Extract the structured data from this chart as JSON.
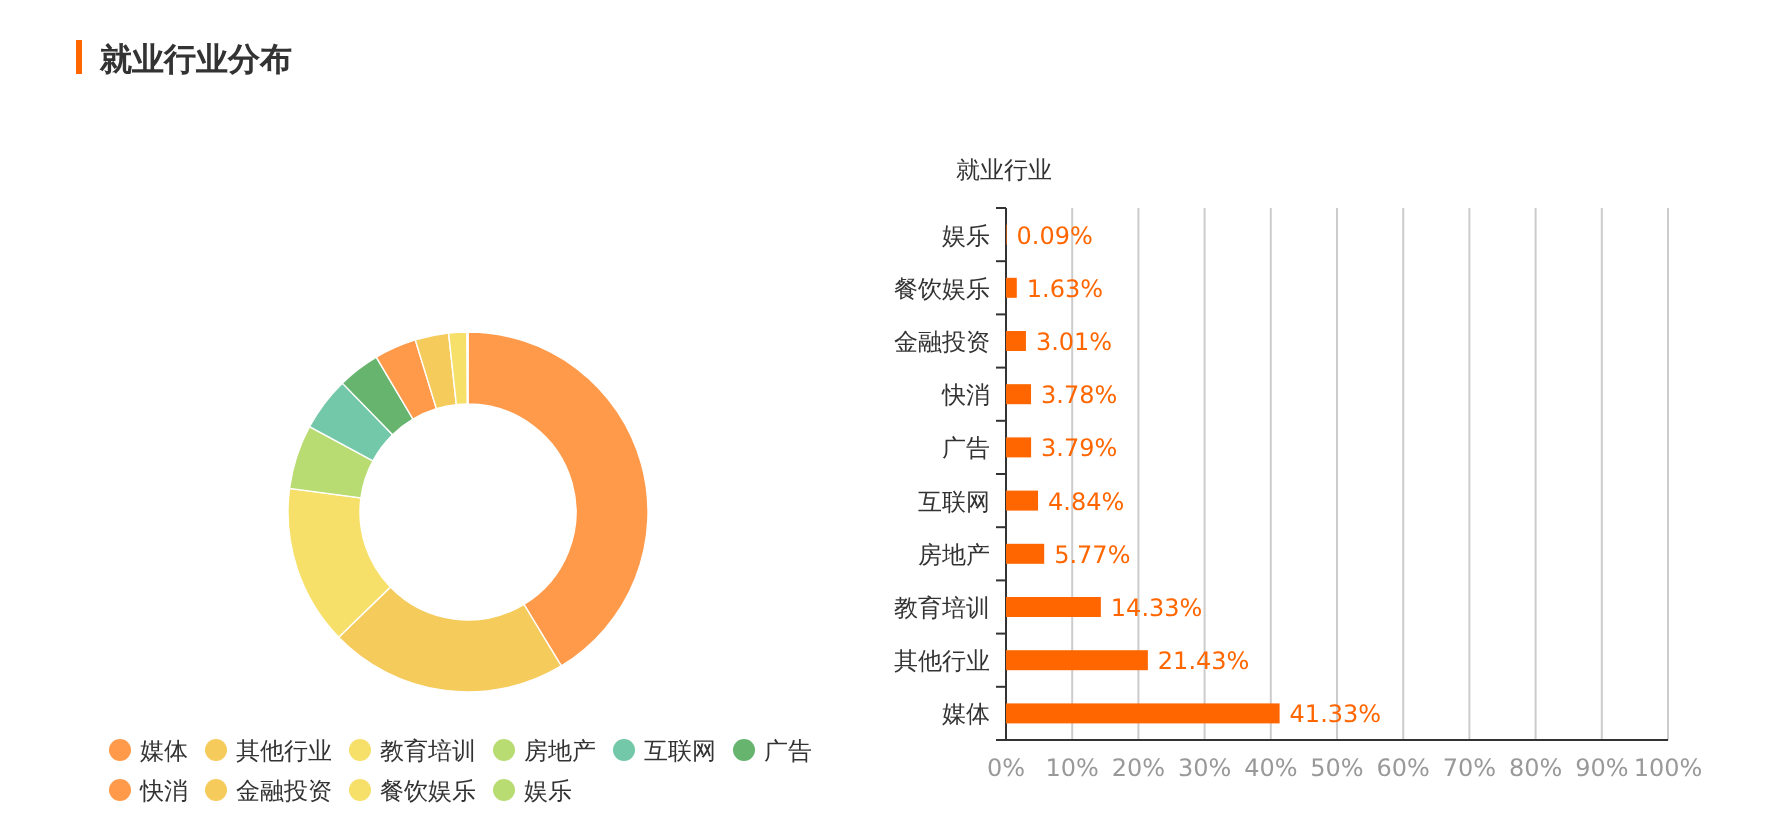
{
  "chart_data": [
    {
      "type": "donut",
      "title": "就业行业分布",
      "categories": [
        "媒体",
        "其他行业",
        "教育培训",
        "房地产",
        "互联网",
        "广告",
        "快消",
        "金融投资",
        "餐饮娱乐",
        "娱乐"
      ],
      "values": [
        41.33,
        21.43,
        14.33,
        5.77,
        4.84,
        3.79,
        3.78,
        3.01,
        1.63,
        0.09
      ],
      "colors": [
        "#ff9a4a",
        "#f5cb5c",
        "#f7e06a",
        "#b8dc72",
        "#72c8a8",
        "#66b46e",
        "#ff9a4a",
        "#f5cb5c",
        "#f7e06a",
        "#b8dc72"
      ],
      "legend": "bottom"
    },
    {
      "type": "bar",
      "orientation": "horizontal",
      "ylabel": "就业行业",
      "categories": [
        "娱乐",
        "餐饮娱乐",
        "金融投资",
        "快消",
        "广告",
        "互联网",
        "房地产",
        "教育培训",
        "其他行业",
        "媒体"
      ],
      "series": [
        {
          "color": "#ff6600",
          "values": [
            0.09,
            1.63,
            3.01,
            3.78,
            3.79,
            4.84,
            5.77,
            14.33,
            21.43,
            41.33
          ],
          "value_labels": [
            "0.09%",
            "1.63%",
            "3.01%",
            "3.78%",
            "3.79%",
            "4.84%",
            "5.77%",
            "14.33%",
            "21.43%",
            "41.33%"
          ]
        }
      ],
      "xlim": [
        0,
        100
      ],
      "xticks": [
        {
          "value": 0,
          "label": "0%"
        },
        {
          "value": 10,
          "label": "10%"
        },
        {
          "value": 20,
          "label": "20%"
        },
        {
          "value": 30,
          "label": "30%"
        },
        {
          "value": 40,
          "label": "40%"
        },
        {
          "value": 50,
          "label": "50%"
        },
        {
          "value": 60,
          "label": "60%"
        },
        {
          "value": 70,
          "label": "70%"
        },
        {
          "value": 80,
          "label": "80%"
        },
        {
          "value": 90,
          "label": "90%"
        },
        {
          "value": 100,
          "label": "100%"
        }
      ],
      "grid": "x"
    }
  ]
}
